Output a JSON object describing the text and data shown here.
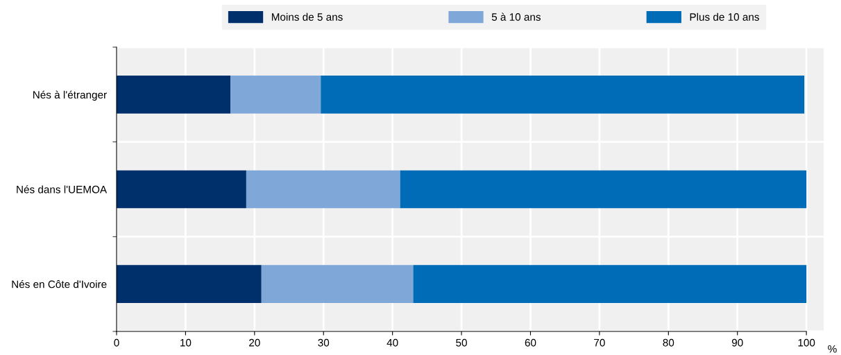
{
  "chart_data": {
    "type": "bar",
    "orientation": "horizontal",
    "stacked": true,
    "categories": [
      "Nés à l'étranger",
      "Nés dans l'UEMOA",
      "Nés en Côte d'Ivoire"
    ],
    "series": [
      {
        "name": "Moins de 5 ans",
        "color": "#00306b",
        "values": [
          16.5,
          18.8,
          21.0
        ]
      },
      {
        "name": "5 à 10 ans",
        "color": "#7fa8d9",
        "values": [
          13.1,
          22.3,
          22.0
        ]
      },
      {
        "name": "Plus de 10 ans",
        "color": "#006bb6",
        "values": [
          70.1,
          58.9,
          57.0
        ]
      }
    ],
    "xlabel": "%",
    "xlim": [
      0,
      100
    ],
    "xticks": [
      0,
      10,
      20,
      30,
      40,
      50,
      60,
      70,
      80,
      90,
      100
    ],
    "grid": true,
    "legend": "top"
  }
}
